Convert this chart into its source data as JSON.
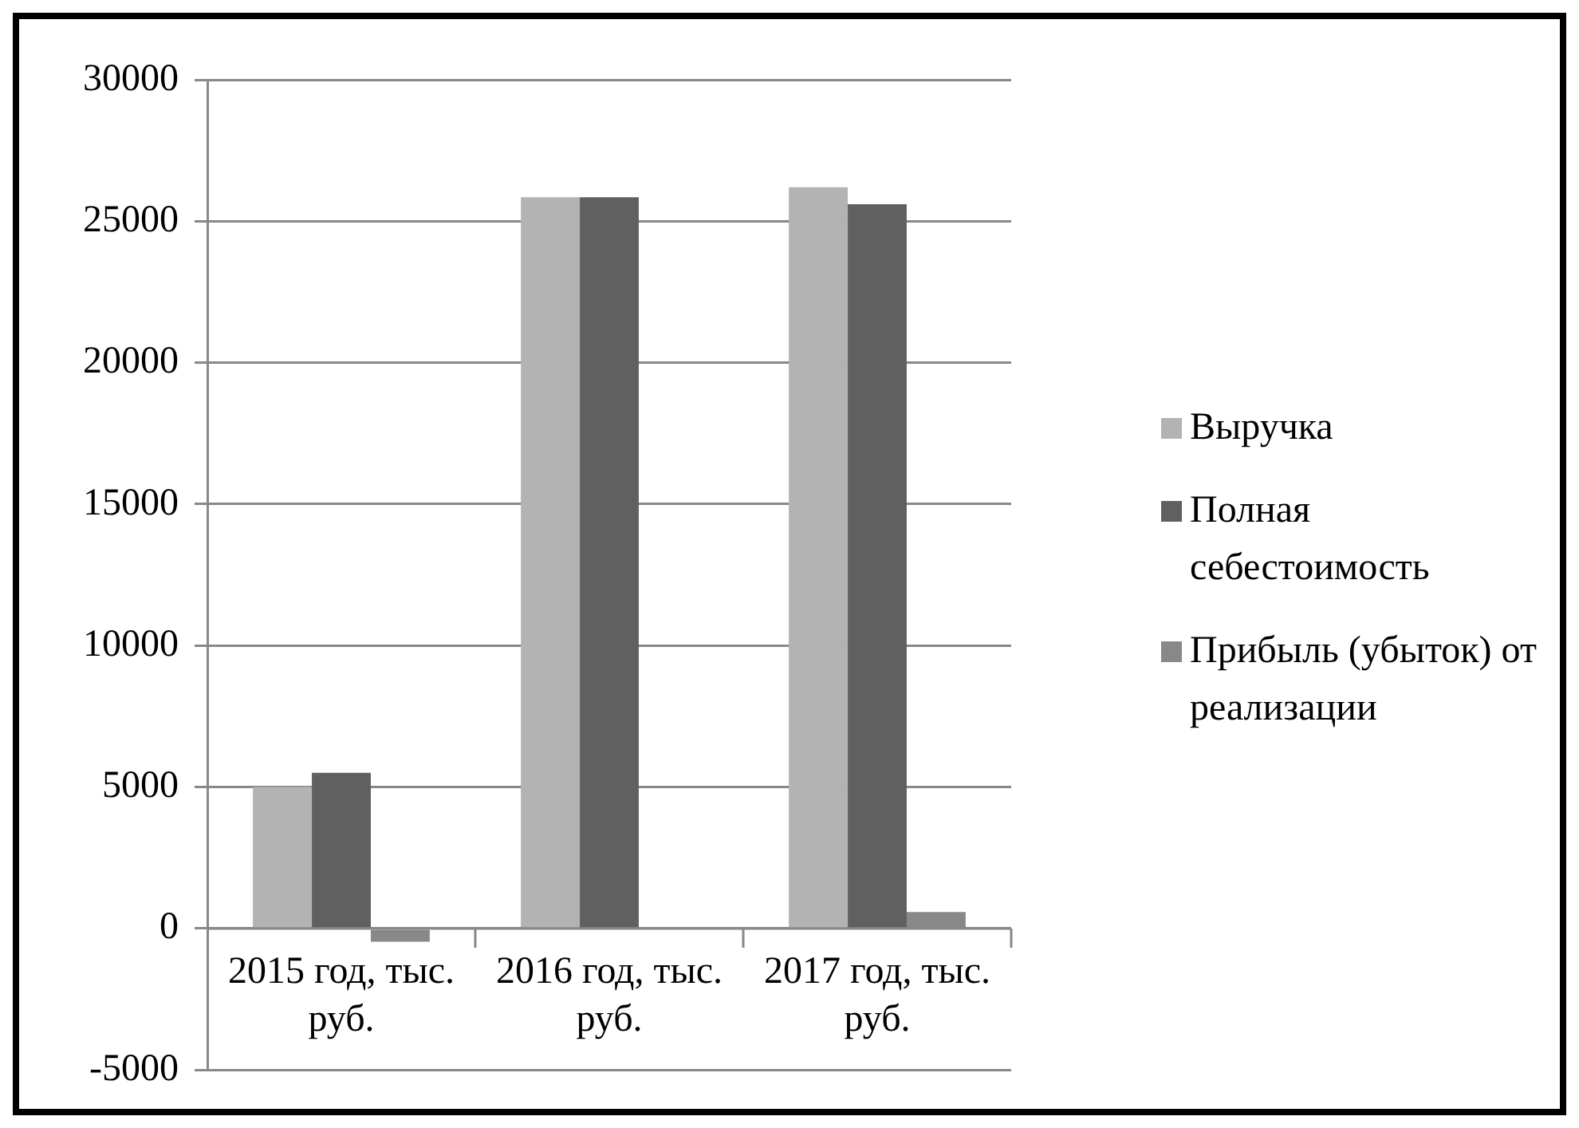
{
  "chart_data": {
    "type": "bar",
    "categories": [
      "2015 год, тыс. руб.",
      "2016 год, тыс. руб.",
      "2017 год, тыс. руб."
    ],
    "series": [
      {
        "name": "Выручка",
        "color": "#b3b3b3",
        "values": [
          5000,
          25850,
          26200
        ]
      },
      {
        "name": "Полная себестоимость",
        "color": "#606060",
        "values": [
          5500,
          25850,
          25600
        ]
      },
      {
        "name": "Прибыль (убыток) от реализации",
        "color": "#888888",
        "values": [
          -470,
          0,
          580
        ]
      }
    ],
    "ylim": [
      -5000,
      30000
    ],
    "yticks": [
      -5000,
      0,
      5000,
      10000,
      15000,
      20000,
      25000,
      30000
    ],
    "grid": "y",
    "legend": "right"
  }
}
